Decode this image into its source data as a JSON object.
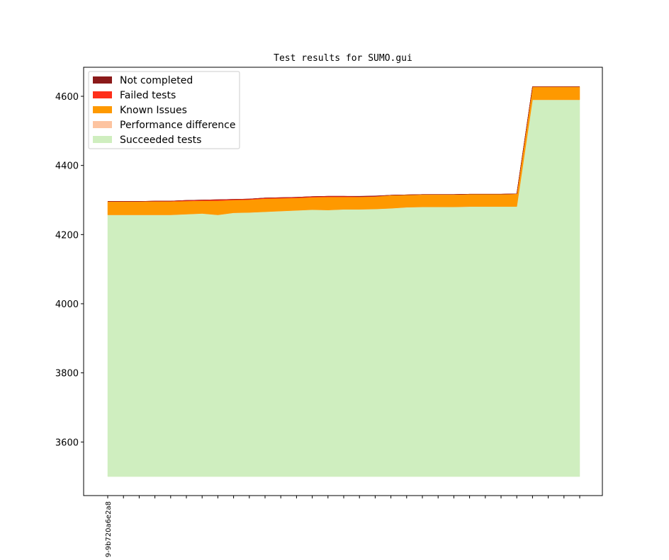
{
  "chart_data": {
    "type": "area",
    "title": "Test results for SUMO.gui",
    "xlabel": "",
    "ylabel": "",
    "ylim": [
      3445,
      4684
    ],
    "yticks": [
      3600,
      3800,
      4000,
      4200,
      4400,
      4600
    ],
    "xtick_labels": [
      "9-9b720a6e2a8"
    ],
    "legend_position": "top-left",
    "grid": false,
    "baseline": 3500,
    "series": [
      {
        "name": "Succeeded tests",
        "color": "#cfeebf",
        "values": [
          4257,
          4257,
          4257,
          4257,
          4257,
          4259,
          4261,
          4257,
          4263,
          4264,
          4266,
          4268,
          4270,
          4272,
          4271,
          4273,
          4273,
          4274,
          4276,
          4279,
          4280,
          4280,
          4280,
          4281,
          4281,
          4281,
          4281,
          4590,
          4590,
          4590,
          4590
        ]
      },
      {
        "name": "Performance difference",
        "color": "#fdc4a0",
        "values": [
          0,
          0,
          0,
          0,
          0,
          0,
          0,
          0,
          0,
          0,
          0,
          0,
          0,
          0,
          0,
          0,
          0,
          0,
          0,
          0,
          0,
          0,
          0,
          0,
          0,
          0,
          0,
          0,
          0,
          0,
          0
        ]
      },
      {
        "name": "Known Issues",
        "color": "#fe9900",
        "values": [
          39,
          39,
          39,
          39,
          39,
          38,
          37,
          41,
          37,
          37,
          38,
          37,
          36,
          36,
          38,
          36,
          36,
          36,
          38,
          36,
          36,
          36,
          36,
          36,
          36,
          36,
          37,
          38,
          38,
          38,
          38
        ]
      },
      {
        "name": "Failed tests",
        "color": "#fe2f1a",
        "values": [
          0,
          0,
          0,
          1,
          1,
          2,
          2,
          3,
          2,
          2,
          2,
          2,
          2,
          2,
          2,
          2,
          1,
          1,
          0,
          0,
          0,
          0,
          0,
          0,
          0,
          0,
          0,
          0,
          0,
          0,
          0
        ]
      },
      {
        "name": "Not completed",
        "color": "#8b1a1a",
        "values": [
          0,
          0,
          0,
          0,
          0,
          0,
          0,
          0,
          0,
          0,
          0,
          0,
          0,
          0,
          0,
          0,
          1,
          1,
          0,
          0,
          0,
          0,
          0,
          0,
          0,
          0,
          0,
          0,
          0,
          0,
          0
        ]
      }
    ],
    "legend_order": [
      "Not completed",
      "Failed tests",
      "Known Issues",
      "Performance difference",
      "Succeeded tests"
    ]
  }
}
